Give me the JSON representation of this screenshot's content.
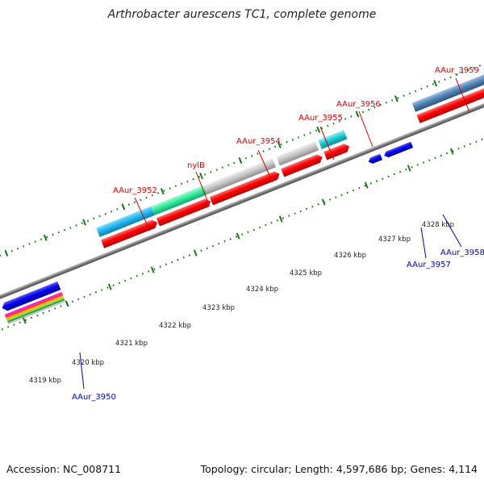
{
  "title": "Arthrobacter aurescens TC1, complete genome",
  "footer": {
    "accession": "Accession: NC_008711",
    "topology": "Topology: circular; Length: 4,597,686 bp; Genes: 4,114"
  },
  "scale": {
    "tick_labels": [
      "4319 kbp",
      "4320 kbp",
      "4321 kbp",
      "4322 kbp",
      "4323 kbp",
      "4324 kbp",
      "4325 kbp",
      "4326 kbp",
      "4327 kbp",
      "4328 kbp"
    ]
  },
  "genes_forward": [
    "AAur_3952",
    "nylB",
    "AAur_3954",
    "AAur_3955",
    "AAur_3956",
    "AAur_3959"
  ],
  "genes_reverse": [
    "AAur_3950",
    "AAur_3957",
    "AAur_3958"
  ],
  "colors": {
    "forward_strand": "#ff0000",
    "reverse_strand": "#0000ee",
    "backbone": "#808080",
    "tick": "#1a7a1a",
    "cog_blue": "#1eb4f0",
    "cog_green": "#2ee89a",
    "cog_gray": "#bdbdbd",
    "cog_cyan": "#18c8d0",
    "cog_steel": "#4f7fb0"
  }
}
